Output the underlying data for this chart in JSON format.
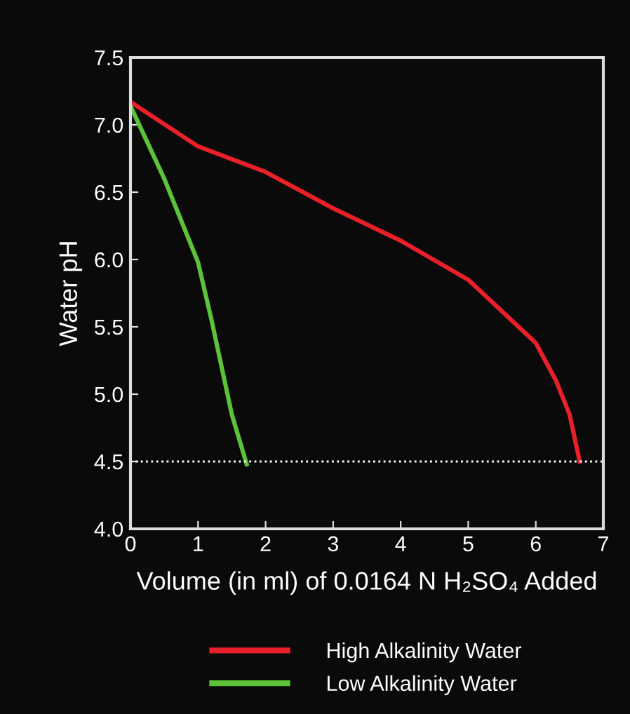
{
  "chart_data": {
    "type": "line",
    "xlabel": "Volume (in ml) of 0.0164 N H₂SO₄ Added",
    "ylabel": "Water pH",
    "xlim": [
      0,
      7
    ],
    "xticks": [
      0,
      1,
      2,
      3,
      4,
      5,
      6,
      7
    ],
    "ylim": [
      4.0,
      7.5
    ],
    "yticks": [
      {
        "value": 4.0,
        "label": "4.0"
      },
      {
        "value": 4.5,
        "label": "4.5"
      },
      {
        "value": 5.0,
        "label": "5.0"
      },
      {
        "value": 5.5,
        "label": "5.5"
      },
      {
        "value": 6.0,
        "label": "6.0"
      },
      {
        "value": 6.5,
        "label": "6.5"
      },
      {
        "value": 7.0,
        "label": "7.0"
      },
      {
        "value": 7.5,
        "label": "7.5"
      }
    ],
    "series": [
      {
        "name": "High Alkalinity Water",
        "color": "#e8202a",
        "x": [
          0,
          1,
          2,
          3,
          4,
          5,
          6,
          6.3,
          6.5,
          6.65
        ],
        "values": [
          7.17,
          6.84,
          6.65,
          6.38,
          6.14,
          5.85,
          5.38,
          5.1,
          4.85,
          4.5
        ]
      },
      {
        "name": "Low Alkalinity Water",
        "color": "#5cc23a",
        "x": [
          0,
          0.5,
          1,
          1.2,
          1.35,
          1.5,
          1.72
        ],
        "values": [
          7.14,
          6.6,
          5.98,
          5.55,
          5.2,
          4.85,
          4.48
        ]
      }
    ],
    "ref_lines": [
      {
        "axis": "y",
        "value": 4.5,
        "color": "#ffffff",
        "line_style": "dotted"
      }
    ],
    "legend": "bottom",
    "grid": false,
    "marker": "none",
    "line_style": "solid"
  }
}
